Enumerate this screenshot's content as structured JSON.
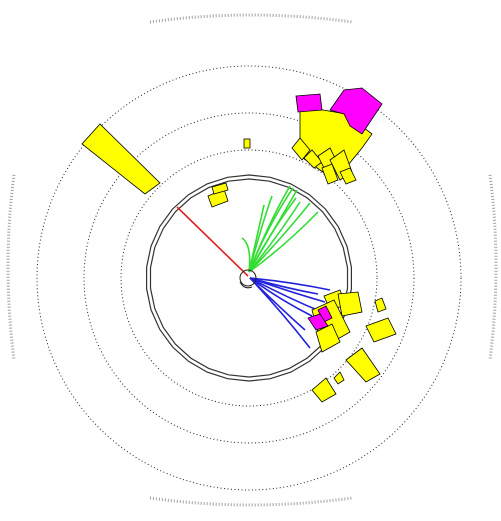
{
  "display": {
    "background": "#ffffff",
    "colors": {
      "rim": "#9a9a9a",
      "ring": "#1a1a1a",
      "detector": "#3a3a3a",
      "energy_yellow": "#ffff00",
      "energy_magenta": "#ff00ff",
      "track_green": "#33dd33",
      "track_blue": "#2222dd",
      "track_red": "#dd2222",
      "tower_outline": "#000000"
    },
    "detector_segments": 30
  }
}
